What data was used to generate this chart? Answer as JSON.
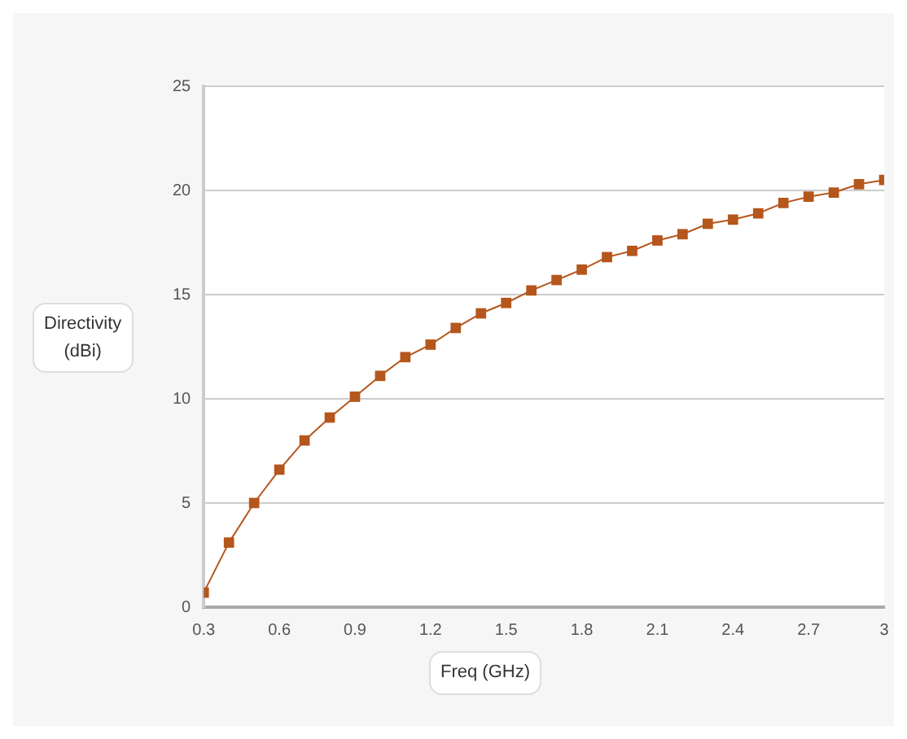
{
  "chart_data": {
    "type": "line",
    "xlabel": "Freq (GHz)",
    "ylabel": "Directivity\n(dBi)",
    "x": [
      0.3,
      0.4,
      0.5,
      0.6,
      0.7,
      0.8,
      0.9,
      1.0,
      1.1,
      1.2,
      1.3,
      1.4,
      1.5,
      1.6,
      1.7,
      1.8,
      1.9,
      2.0,
      2.1,
      2.2,
      2.3,
      2.4,
      2.5,
      2.6,
      2.7,
      2.8,
      2.9,
      3.0
    ],
    "series": [
      {
        "color": "#b5561c",
        "values": [
          0.7,
          3.1,
          5.0,
          6.6,
          8.0,
          9.1,
          10.1,
          11.1,
          12.0,
          12.6,
          13.4,
          14.1,
          14.6,
          15.2,
          15.7,
          16.2,
          16.8,
          17.1,
          17.6,
          17.9,
          18.4,
          18.6,
          18.9,
          19.4,
          19.7,
          19.9,
          20.3,
          20.5
        ]
      }
    ],
    "xlim": [
      0.3,
      3
    ],
    "xticks": [
      {
        "value": 0.3,
        "label": "0.3"
      },
      {
        "value": 0.6,
        "label": "0.6"
      },
      {
        "value": 0.9,
        "label": "0.9"
      },
      {
        "value": 1.2,
        "label": "1.2"
      },
      {
        "value": 1.5,
        "label": "1.5"
      },
      {
        "value": 1.8,
        "label": "1.8"
      },
      {
        "value": 2.1,
        "label": "2.1"
      },
      {
        "value": 2.4,
        "label": "2.4"
      },
      {
        "value": 2.7,
        "label": "2.7"
      },
      3
    ],
    "ylim": [
      0,
      25
    ],
    "yticks": [
      0,
      5,
      10,
      15,
      20,
      25
    ],
    "grid": "y",
    "marker": "square",
    "line_style": "solid",
    "legend": false
  }
}
